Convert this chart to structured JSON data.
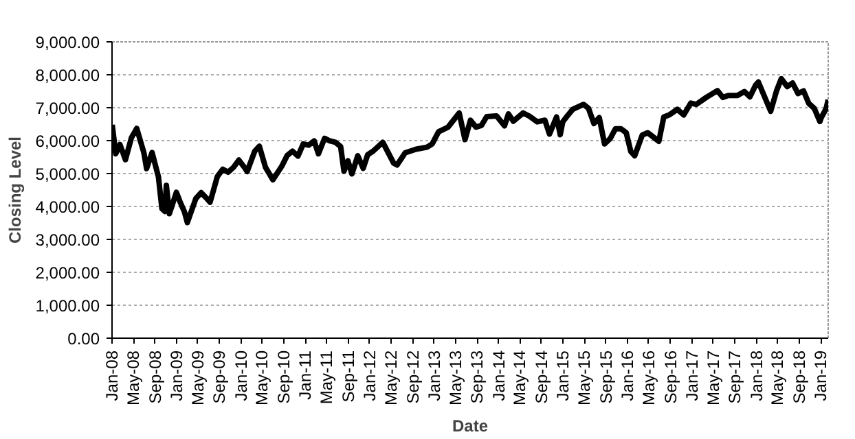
{
  "chart_data": {
    "type": "line",
    "xlabel": "Date",
    "ylabel": "Closing Level",
    "x": [
      "2008-01-02",
      "2008-01-22",
      "2008-02-15",
      "2008-03-17",
      "2008-04-20",
      "2008-05-20",
      "2008-06-30",
      "2008-07-15",
      "2008-08-15",
      "2008-09-20",
      "2008-10-10",
      "2008-10-27",
      "2008-11-04",
      "2008-11-21",
      "2008-12-31",
      "2009-01-20",
      "2009-02-15",
      "2009-03-03",
      "2009-04-20",
      "2009-05-20",
      "2009-06-20",
      "2009-07-10",
      "2009-08-20",
      "2009-09-20",
      "2009-10-20",
      "2009-11-20",
      "2009-12-20",
      "2010-01-20",
      "2010-02-05",
      "2010-03-20",
      "2010-04-15",
      "2010-05-20",
      "2010-07-01",
      "2010-08-20",
      "2010-09-20",
      "2010-10-20",
      "2010-11-20",
      "2010-12-20",
      "2011-01-20",
      "2011-02-20",
      "2011-03-16",
      "2011-04-20",
      "2011-05-20",
      "2011-06-20",
      "2011-07-20",
      "2011-08-08",
      "2011-08-30",
      "2011-09-22",
      "2011-10-25",
      "2011-11-25",
      "2011-12-20",
      "2012-01-20",
      "2012-03-15",
      "2012-05-15",
      "2012-06-04",
      "2012-07-20",
      "2012-09-20",
      "2012-11-20",
      "2012-12-20",
      "2013-01-25",
      "2013-03-20",
      "2013-05-22",
      "2013-06-24",
      "2013-07-25",
      "2013-08-25",
      "2013-09-25",
      "2013-10-25",
      "2013-12-20",
      "2014-02-03",
      "2014-02-25",
      "2014-03-25",
      "2014-05-20",
      "2014-06-25",
      "2014-08-08",
      "2014-09-20",
      "2014-10-16",
      "2014-11-25",
      "2014-12-16",
      "2014-12-30",
      "2015-01-25",
      "2015-02-25",
      "2015-04-27",
      "2015-05-25",
      "2015-06-25",
      "2015-07-25",
      "2015-08-24",
      "2015-09-25",
      "2015-10-25",
      "2015-11-25",
      "2015-12-25",
      "2016-01-20",
      "2016-02-11",
      "2016-03-25",
      "2016-04-25",
      "2016-06-27",
      "2016-07-25",
      "2016-08-25",
      "2016-10-10",
      "2016-11-15",
      "2016-12-25",
      "2017-01-25",
      "2017-03-25",
      "2017-05-25",
      "2017-06-25",
      "2017-07-25",
      "2017-09-15",
      "2017-10-25",
      "2017-11-25",
      "2017-12-28",
      "2018-01-12",
      "2018-03-23",
      "2018-04-25",
      "2018-05-22",
      "2018-06-25",
      "2018-07-25",
      "2018-08-25",
      "2018-09-25",
      "2018-10-25",
      "2018-11-25",
      "2018-12-27",
      "2019-01-03",
      "2019-01-31",
      "2019-02-12"
    ],
    "series": [
      {
        "color": "#000000",
        "values": [
          6480,
          5600,
          5880,
          5420,
          6090,
          6370,
          5620,
          5150,
          5640,
          4900,
          3930,
          3850,
          4640,
          3780,
          4430,
          4150,
          3830,
          3510,
          4240,
          4420,
          4250,
          4130,
          4910,
          5130,
          5040,
          5190,
          5410,
          5190,
          5060,
          5680,
          5830,
          5190,
          4810,
          5220,
          5550,
          5680,
          5530,
          5900,
          5860,
          5990,
          5600,
          6070,
          5990,
          5950,
          5820,
          5070,
          5390,
          4990,
          5540,
          5160,
          5570,
          5680,
          5950,
          5320,
          5260,
          5630,
          5740,
          5800,
          5900,
          6270,
          6410,
          6840,
          6030,
          6620,
          6410,
          6460,
          6730,
          6750,
          6450,
          6810,
          6590,
          6840,
          6740,
          6570,
          6620,
          6200,
          6720,
          6180,
          6570,
          6750,
          6950,
          7100,
          6980,
          6520,
          6700,
          5900,
          6060,
          6360,
          6360,
          6240,
          5670,
          5540,
          6170,
          6240,
          5980,
          6720,
          6780,
          6950,
          6780,
          7140,
          7100,
          7320,
          7520,
          7310,
          7370,
          7370,
          7490,
          7330,
          7690,
          7780,
          6890,
          7510,
          7880,
          7640,
          7750,
          7430,
          7510,
          7130,
          6980,
          6580,
          6690,
          6970,
          7240
        ]
      }
    ],
    "xlim": [
      "2008-01-01",
      "2019-02-12"
    ],
    "xticks": [
      {
        "value": "2008-01-01",
        "label": "Jan-08"
      },
      {
        "value": "2008-05-01",
        "label": "May-08"
      },
      {
        "value": "2008-09-01",
        "label": "Sep-08"
      },
      {
        "value": "2009-01-01",
        "label": "Jan-09"
      },
      {
        "value": "2009-05-01",
        "label": "May-09"
      },
      {
        "value": "2009-09-01",
        "label": "Sep-09"
      },
      {
        "value": "2010-01-01",
        "label": "Jan-10"
      },
      {
        "value": "2010-05-01",
        "label": "May-10"
      },
      {
        "value": "2010-09-01",
        "label": "Sep-10"
      },
      {
        "value": "2011-01-01",
        "label": "Jan-11"
      },
      {
        "value": "2011-05-01",
        "label": "May-11"
      },
      {
        "value": "2011-09-01",
        "label": "Sep-11"
      },
      {
        "value": "2012-01-01",
        "label": "Jan-12"
      },
      {
        "value": "2012-05-01",
        "label": "May-12"
      },
      {
        "value": "2012-09-01",
        "label": "Sep-12"
      },
      {
        "value": "2013-01-01",
        "label": "Jan-13"
      },
      {
        "value": "2013-05-01",
        "label": "May-13"
      },
      {
        "value": "2013-09-01",
        "label": "Sep-13"
      },
      {
        "value": "2014-01-01",
        "label": "Jan-14"
      },
      {
        "value": "2014-05-01",
        "label": "May-14"
      },
      {
        "value": "2014-09-01",
        "label": "Sep-14"
      },
      {
        "value": "2015-01-01",
        "label": "Jan-15"
      },
      {
        "value": "2015-05-01",
        "label": "May-15"
      },
      {
        "value": "2015-09-01",
        "label": "Sep-15"
      },
      {
        "value": "2016-01-01",
        "label": "Jan-16"
      },
      {
        "value": "2016-05-01",
        "label": "May-16"
      },
      {
        "value": "2016-09-01",
        "label": "Sep-16"
      },
      {
        "value": "2017-01-01",
        "label": "Jan-17"
      },
      {
        "value": "2017-05-01",
        "label": "May-17"
      },
      {
        "value": "2017-09-01",
        "label": "Sep-17"
      },
      {
        "value": "2018-01-01",
        "label": "Jan-18"
      },
      {
        "value": "2018-05-01",
        "label": "May-18"
      },
      {
        "value": "2018-09-01",
        "label": "Sep-18"
      },
      {
        "value": "2019-01-01",
        "label": "Jan-19"
      }
    ],
    "ylim": [
      0,
      9000
    ],
    "yticks": [
      {
        "value": 0,
        "label": "0.00"
      },
      {
        "value": 1000,
        "label": "1,000.00"
      },
      {
        "value": 2000,
        "label": "2,000.00"
      },
      {
        "value": 3000,
        "label": "3,000.00"
      },
      {
        "value": 4000,
        "label": "4,000.00"
      },
      {
        "value": 5000,
        "label": "5,000.00"
      },
      {
        "value": 6000,
        "label": "6,000.00"
      },
      {
        "value": 7000,
        "label": "7,000.00"
      },
      {
        "value": 8000,
        "label": "8,000.00"
      },
      {
        "value": 9000,
        "label": "9,000.00"
      }
    ],
    "grid": "y",
    "marker": "none",
    "line_style": "solid"
  }
}
